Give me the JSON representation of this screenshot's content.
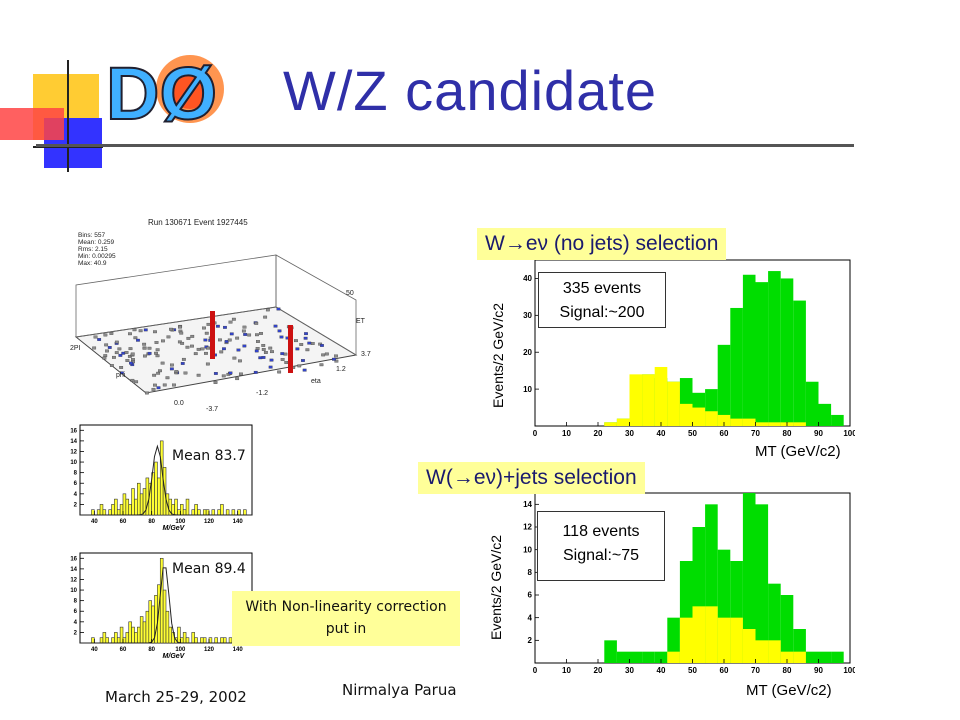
{
  "slide": {
    "title": "W/Z candidate",
    "logo_text": "DØ",
    "footer_date": "March 25-29, 2002",
    "footer_author": "Nirmalya Parua",
    "correction_note": "With Non-linearity correction put in",
    "mean_top": "Mean 83.7",
    "mean_bottom": "Mean 89.4",
    "event_display": {
      "header": "Run 130671 Event 1927445",
      "stats": [
        "Bins: 557",
        "Mean: 0.259",
        "Rms: 2.15",
        "Min: 0.00295",
        "Max: 40.9"
      ],
      "axis_labels": [
        "50",
        "ET",
        "3.7",
        "1.2",
        "eta",
        "2PI",
        "phi",
        "0.0",
        "-3.7",
        "-1.2"
      ]
    },
    "colors": {
      "title": "#2f2fa8",
      "signal": "#00dd00",
      "background": "#ffff00",
      "label_box": "#ffff99",
      "mass_hist": "#ffff33"
    }
  },
  "chart_data": [
    {
      "type": "bar",
      "title": "W→eν (no jets) selection",
      "ylabel": "Events/2 GeV/c2",
      "xlabel": "MT (GeV/c2)",
      "stat_line1": "335 events",
      "stat_line2": "Signal:~200",
      "xlim": [
        0,
        100
      ],
      "ylim": [
        0,
        45
      ],
      "yticks": [
        10,
        20,
        30,
        40
      ],
      "xticks": [
        0,
        10,
        20,
        30,
        40,
        50,
        60,
        70,
        80,
        90,
        100
      ],
      "bin_width": 4,
      "series": [
        {
          "name": "",
          "x": [
            22,
            26,
            30,
            34,
            38,
            42,
            46,
            50,
            54,
            58,
            62,
            66,
            70,
            74,
            78,
            82,
            86,
            90,
            94
          ],
          "values": [
            1,
            2,
            6,
            14,
            13,
            12,
            13,
            9,
            10,
            22,
            32,
            41,
            39,
            42,
            40,
            34,
            12,
            6,
            3
          ]
        },
        {
          "name": "",
          "x": [
            22,
            26,
            30,
            34,
            38,
            42,
            46,
            50,
            54,
            58,
            62,
            66,
            70,
            74,
            78,
            82
          ],
          "values": [
            1,
            2,
            14,
            14,
            16,
            12,
            6,
            5,
            4,
            3,
            2,
            2,
            1,
            1,
            1,
            1
          ]
        }
      ]
    },
    {
      "type": "bar",
      "title": "W(→eν)+jets selection",
      "ylabel": "Events/2 GeV/c2",
      "xlabel": "MT (GeV/c2)",
      "stat_line1": "118 events",
      "stat_line2": "Signal:~75",
      "xlim": [
        0,
        100
      ],
      "ylim": [
        0,
        15
      ],
      "yticks": [
        2,
        4,
        6,
        8,
        10,
        12,
        14
      ],
      "xticks": [
        0,
        10,
        20,
        30,
        40,
        50,
        60,
        70,
        80,
        90,
        100
      ],
      "bin_width": 4,
      "series": [
        {
          "name": "",
          "x": [
            22,
            26,
            30,
            34,
            38,
            42,
            46,
            50,
            54,
            58,
            62,
            66,
            70,
            74,
            78,
            82,
            86,
            90,
            94
          ],
          "values": [
            2,
            1,
            1,
            1,
            1,
            4,
            9,
            12,
            14,
            10,
            9,
            15,
            14,
            7,
            6,
            3,
            1,
            1,
            1
          ]
        },
        {
          "name": "",
          "x": [
            42,
            46,
            50,
            54,
            58,
            62,
            66,
            70,
            74,
            78,
            82
          ],
          "values": [
            1,
            4,
            5,
            5,
            4,
            4,
            3,
            2,
            2,
            1,
            1
          ]
        }
      ]
    },
    {
      "type": "bar",
      "title": "",
      "xlabel": "M/GeV",
      "xticks": [
        40,
        60,
        80,
        100,
        120,
        140
      ],
      "yticks": [
        2,
        4,
        6,
        8,
        10,
        12,
        14,
        16
      ],
      "xlim": [
        30,
        150
      ],
      "ylim": [
        0,
        17
      ],
      "bin_width": 2,
      "series": [
        {
          "name": "",
          "x": [
            38,
            40,
            42,
            44,
            46,
            48,
            50,
            52,
            54,
            56,
            58,
            60,
            62,
            64,
            66,
            68,
            70,
            72,
            74,
            76,
            78,
            80,
            82,
            84,
            86,
            88,
            90,
            92,
            94,
            96,
            98,
            100,
            102,
            104,
            106,
            108,
            110,
            112,
            114,
            116,
            118,
            120,
            122,
            124,
            126,
            128,
            130,
            132,
            134,
            136,
            138,
            140,
            142,
            144
          ],
          "values": [
            1,
            0,
            1,
            2,
            1,
            0,
            1,
            2,
            3,
            1,
            2,
            4,
            3,
            2,
            5,
            3,
            6,
            4,
            5,
            7,
            6,
            8,
            10,
            7,
            14,
            9,
            4,
            3,
            2,
            3,
            1,
            2,
            1,
            3,
            0,
            1,
            2,
            1,
            0,
            1,
            1,
            0,
            1,
            0,
            1,
            2,
            0,
            1,
            0,
            1,
            0,
            1,
            0,
            1
          ]
        }
      ]
    },
    {
      "type": "bar",
      "title": "",
      "xlabel": "M/GeV",
      "xticks": [
        40,
        60,
        80,
        100,
        120,
        140
      ],
      "yticks": [
        2,
        4,
        6,
        8,
        10,
        12,
        14,
        16
      ],
      "xlim": [
        30,
        150
      ],
      "ylim": [
        0,
        17
      ],
      "bin_width": 2,
      "series": [
        {
          "name": "",
          "x": [
            38,
            40,
            42,
            44,
            46,
            48,
            50,
            52,
            54,
            56,
            58,
            60,
            62,
            64,
            66,
            68,
            70,
            72,
            74,
            76,
            78,
            80,
            82,
            84,
            86,
            88,
            90,
            92,
            94,
            96,
            98,
            100,
            102,
            104,
            106,
            108,
            110,
            112,
            114,
            116,
            118,
            120,
            122,
            124,
            126,
            128,
            130,
            132,
            134,
            136,
            138,
            140,
            142,
            144
          ],
          "values": [
            1,
            0,
            0,
            1,
            2,
            1,
            0,
            1,
            2,
            1,
            3,
            1,
            2,
            4,
            3,
            2,
            3,
            5,
            4,
            6,
            8,
            7,
            9,
            11,
            16,
            10,
            6,
            3,
            2,
            1,
            3,
            1,
            2,
            1,
            0,
            2,
            1,
            0,
            1,
            1,
            0,
            1,
            0,
            1,
            0,
            1,
            1,
            0,
            1,
            0,
            1,
            0,
            1,
            1
          ]
        }
      ]
    }
  ]
}
